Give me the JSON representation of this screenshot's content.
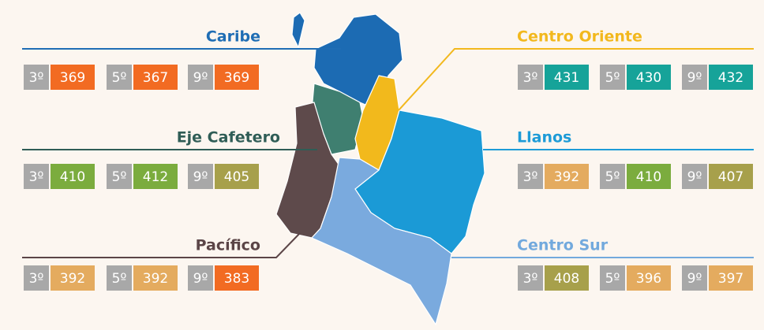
{
  "regions": [
    {
      "name": "Caribe",
      "color": "#1f6db4",
      "scores": [
        {
          "grade": "3º",
          "value": 369,
          "color": "#f26b22"
        },
        {
          "grade": "5º",
          "value": 367,
          "color": "#f26b22"
        },
        {
          "grade": "9º",
          "value": 369,
          "color": "#f26b22"
        }
      ]
    },
    {
      "name": "Eje Cafetero",
      "color": "#2f5d56",
      "scores": [
        {
          "grade": "3º",
          "value": 410,
          "color": "#7bac3e"
        },
        {
          "grade": "5º",
          "value": 412,
          "color": "#7bac3e"
        },
        {
          "grade": "9º",
          "value": 405,
          "color": "#a7a04b"
        }
      ]
    },
    {
      "name": "Pacífico",
      "color": "#5b4547",
      "scores": [
        {
          "grade": "3º",
          "value": 392,
          "color": "#e4ab5f"
        },
        {
          "grade": "5º",
          "value": 392,
          "color": "#e4ab5f"
        },
        {
          "grade": "9º",
          "value": 383,
          "color": "#f26b22"
        }
      ]
    },
    {
      "name": "Centro Oriente",
      "color": "#f2b81d",
      "scores": [
        {
          "grade": "3º",
          "value": 431,
          "color": "#16a399"
        },
        {
          "grade": "5º",
          "value": 430,
          "color": "#16a399"
        },
        {
          "grade": "9º",
          "value": 432,
          "color": "#16a399"
        }
      ]
    },
    {
      "name": "Llanos",
      "color": "#1d9bd7",
      "scores": [
        {
          "grade": "3º",
          "value": 392,
          "color": "#e4ab5f"
        },
        {
          "grade": "5º",
          "value": 410,
          "color": "#7bac3e"
        },
        {
          "grade": "9º",
          "value": 407,
          "color": "#a7a04b"
        }
      ]
    },
    {
      "name": "Centro Sur",
      "color": "#72a9dd",
      "scores": [
        {
          "grade": "3º",
          "value": 408,
          "color": "#a7a04b"
        },
        {
          "grade": "5º",
          "value": 396,
          "color": "#e4ab5f"
        },
        {
          "grade": "9º",
          "value": 397,
          "color": "#e4ab5f"
        }
      ]
    }
  ]
}
